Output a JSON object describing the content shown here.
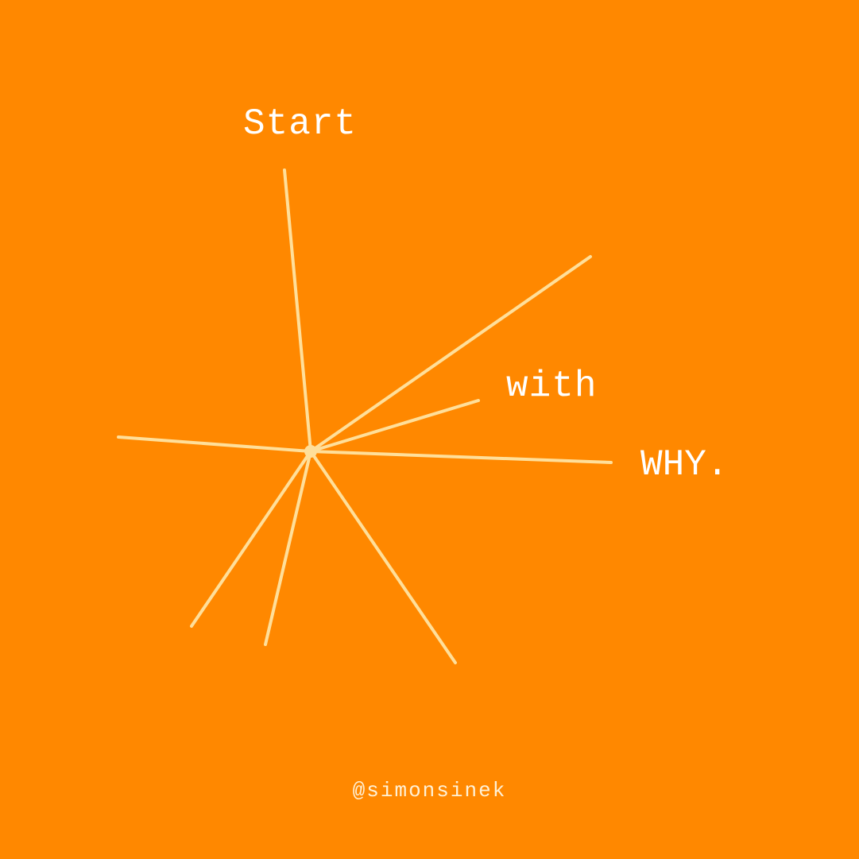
{
  "poster": {
    "background_color": "#FF8800",
    "line_color": "#FFDF9A",
    "text_color": "#FFFFFF",
    "words": {
      "start": "Start",
      "with": "with",
      "why": "WHY."
    },
    "handle": "@simonsinek"
  }
}
